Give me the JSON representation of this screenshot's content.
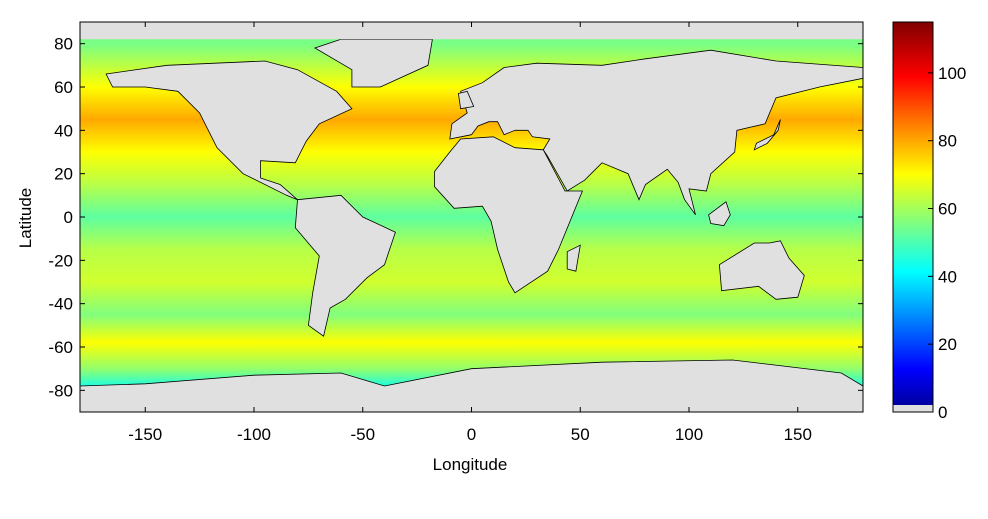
{
  "chart_data": {
    "type": "heatmap",
    "title": "",
    "xlabel": "Longitude",
    "ylabel": "Latitude",
    "xlim": [
      -180,
      180
    ],
    "ylim": [
      -90,
      90
    ],
    "xticks": [
      -150,
      -100,
      -50,
      0,
      50,
      100,
      150
    ],
    "yticks": [
      80,
      60,
      40,
      20,
      0,
      -20,
      -40,
      -60,
      -80
    ],
    "xtick_labels": [
      "-150",
      "-100",
      "-50",
      "0",
      "50",
      "100",
      "150"
    ],
    "ytick_labels": [
      "80",
      "60",
      "40",
      "20",
      "0",
      "-20",
      "-40",
      "-60",
      "-80"
    ],
    "colorbar": {
      "range": [
        0,
        115
      ],
      "ticks": [
        0,
        20,
        40,
        60,
        80,
        100
      ],
      "tick_labels": [
        "0",
        "20",
        "40",
        "60",
        "80",
        "100"
      ],
      "colormap": "jet",
      "no_data_color": "#e0e0e0"
    },
    "land_color": "#e0e0e0",
    "zonal_profile": [
      {
        "lat": 80,
        "value": 55
      },
      {
        "lat": 60,
        "value": 70
      },
      {
        "lat": 45,
        "value": 80
      },
      {
        "lat": 30,
        "value": 70
      },
      {
        "lat": 15,
        "value": 62
      },
      {
        "lat": 0,
        "value": 52
      },
      {
        "lat": -15,
        "value": 62
      },
      {
        "lat": -30,
        "value": 65
      },
      {
        "lat": -45,
        "value": 56
      },
      {
        "lat": -58,
        "value": 70
      },
      {
        "lat": -70,
        "value": 58
      },
      {
        "lat": -78,
        "value": 45
      }
    ]
  }
}
